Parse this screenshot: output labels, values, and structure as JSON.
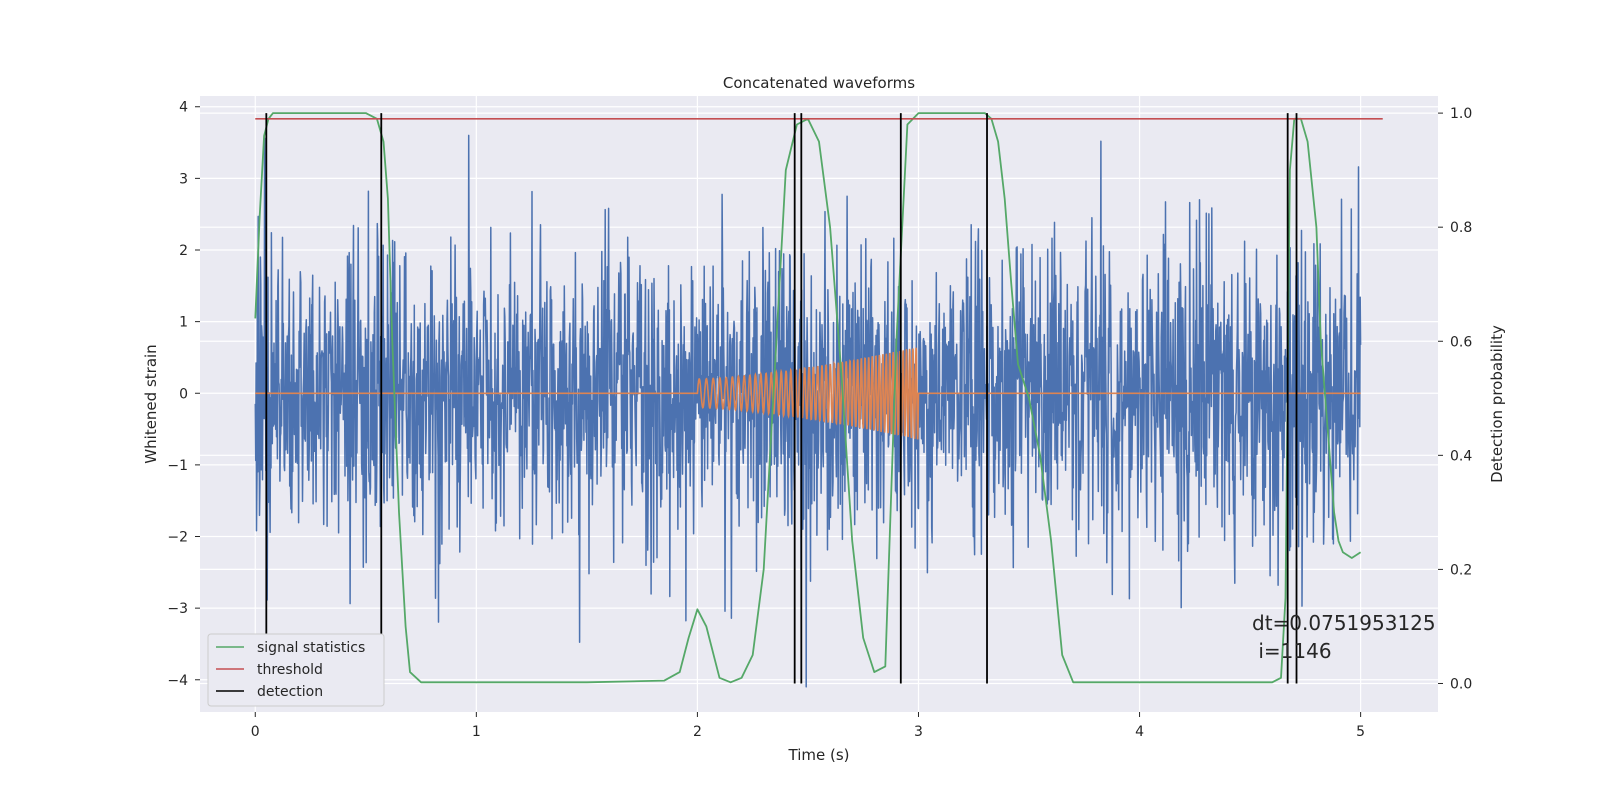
{
  "chart_data": {
    "type": "line",
    "title": "Concatenated waveforms",
    "xlabel": "Time (s)",
    "ylabel_left": "Whitened strain",
    "ylabel_right": "Detection probability",
    "xlim": [
      -0.25,
      5.35
    ],
    "ylim_left": [
      -4.45,
      4.15
    ],
    "ylim_right": [
      -0.05,
      1.03
    ],
    "x_ticks": [
      0,
      1,
      2,
      3,
      4,
      5
    ],
    "y_ticks_left": [
      -4,
      -3,
      -2,
      -1,
      0,
      1,
      2,
      3,
      4
    ],
    "y_ticks_right": [
      0.0,
      0.2,
      0.4,
      0.6,
      0.8,
      1.0
    ],
    "grid": true,
    "legend_position": "lower-left",
    "annotation": {
      "line1": "dt=0.0751953125",
      "line2": " i=1146"
    },
    "series": [
      {
        "name": "",
        "axis": "left",
        "color": "#4c72b0",
        "description": "whitened strain noise, amplitude ~1-3.8",
        "x_range": [
          0,
          5
        ],
        "typical_amplitude": 1.0,
        "max_spike": 3.8,
        "min_spike": -4.1
      },
      {
        "name": "",
        "axis": "left",
        "color": "#dd8452",
        "description": "injected chirp waveform",
        "x_range": [
          2.0,
          3.0
        ],
        "start_amplitude": 0.2,
        "end_amplitude": 0.65
      },
      {
        "name": "signal statistics",
        "axis": "right",
        "color": "#55a868",
        "x": [
          0,
          0.02,
          0.04,
          0.06,
          0.08,
          0.1,
          0.5,
          0.55,
          0.58,
          0.6,
          0.62,
          0.65,
          0.68,
          0.7,
          0.75,
          1.5,
          1.85,
          1.92,
          1.96,
          2.0,
          2.04,
          2.08,
          2.1,
          2.15,
          2.2,
          2.25,
          2.3,
          2.35,
          2.4,
          2.45,
          2.5,
          2.55,
          2.6,
          2.65,
          2.7,
          2.75,
          2.8,
          2.85,
          2.9,
          2.95,
          3.0,
          3.3,
          3.33,
          3.36,
          3.39,
          3.42,
          3.45,
          3.5,
          3.55,
          3.6,
          3.65,
          3.7,
          4.6,
          4.64,
          4.66,
          4.68,
          4.7,
          4.73,
          4.76,
          4.8,
          4.82,
          4.85,
          4.88,
          4.9,
          4.92,
          4.96,
          5.0
        ],
        "values": [
          0.64,
          0.82,
          0.96,
          0.99,
          1.0,
          1.0,
          1.0,
          0.99,
          0.95,
          0.85,
          0.6,
          0.3,
          0.1,
          0.02,
          0.002,
          0.002,
          0.005,
          0.02,
          0.08,
          0.13,
          0.1,
          0.04,
          0.01,
          0.002,
          0.01,
          0.05,
          0.2,
          0.55,
          0.9,
          0.98,
          0.99,
          0.95,
          0.8,
          0.55,
          0.25,
          0.08,
          0.02,
          0.03,
          0.6,
          0.98,
          1.0,
          1.0,
          0.99,
          0.95,
          0.85,
          0.7,
          0.56,
          0.5,
          0.4,
          0.25,
          0.05,
          0.002,
          0.002,
          0.01,
          0.15,
          0.9,
          0.99,
          0.99,
          0.95,
          0.8,
          0.6,
          0.45,
          0.3,
          0.25,
          0.23,
          0.22,
          0.23
        ]
      },
      {
        "name": "threshold",
        "axis": "right",
        "color": "#c44e52",
        "x": [
          0,
          5.1
        ],
        "values": [
          0.99,
          0.99
        ]
      },
      {
        "name": "detection",
        "axis": "right",
        "color": "#000000",
        "vlines": [
          0.05,
          0.57,
          2.44,
          2.47,
          2.92,
          3.31,
          4.67,
          4.71
        ],
        "vline_range": [
          0.0,
          1.0
        ]
      }
    ]
  }
}
